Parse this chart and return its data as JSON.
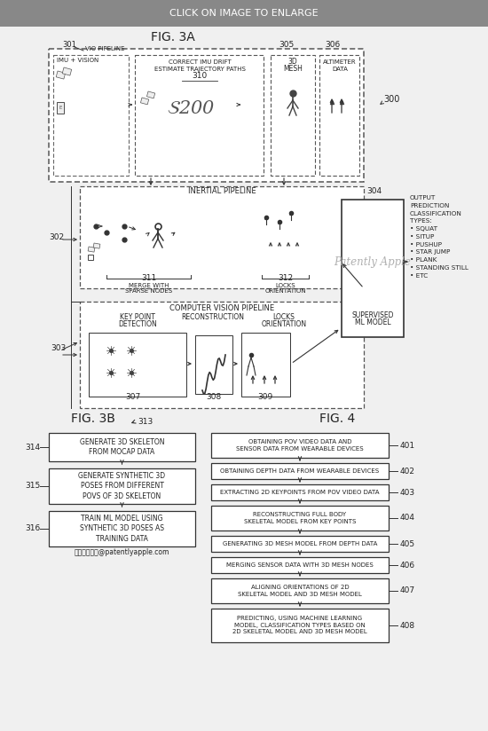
{
  "header_text": "CLICK ON IMAGE TO ENLARGE",
  "header_bg": "#888888",
  "header_text_color": "#ffffff",
  "bg_color": "#f0f0f0",
  "fig3a_title": "FIG. 3A",
  "fig3b_title": "FIG. 3B",
  "fig4_title": "FIG. 4",
  "text_color": "#222222",
  "fig4_steps": [
    "OBTAINING POV VIDEO DATA AND\nSENSOR DATA FROM WEARABLE DEVICES",
    "OBTAINING DEPTH DATA FROM WEARABLE DEVICES",
    "EXTRACTING 2D KEYPOINTS FROM POV VIDEO DATA",
    "RECONSTRUCTING FULL BODY\nSKELETAL MODEL FROM KEY POINTS",
    "GENERATING 3D MESH MODEL FROM DEPTH DATA",
    "MERGING SENSOR DATA WITH 3D MESH NODES",
    "ALIGNING ORIENTATIONS OF 2D\nSKELETAL MODEL AND 3D MESH MODEL",
    "PREDICTING, USING MACHINE LEARNING\nMODEL, CLASSIFICATION TYPES BASED ON\n2D SKELETAL MODEL AND 3D MESH MODEL"
  ],
  "fig4_labels": [
    "401",
    "402",
    "403",
    "404",
    "405",
    "406",
    "407",
    "408"
  ],
  "fig3b_steps": [
    "GENERATE 3D SKELETON\nFROM MOCAP DATA",
    "GENERATE SYNTHETIC 3D\nPOSES FROM DIFFERENT\nPOVS OF 3D SKELETON",
    "TRAIN ML MODEL USING\nSYNTHETIC 3D POSES AS\nTRAINING DATA"
  ],
  "fig3b_labels": [
    "314",
    "315",
    "316"
  ],
  "website": "阅读完整报告@patentlyapple.com",
  "classification_list": "OUTPUT\nPREDICTION\nCLASSIFICATION\nTYPES:\n• SQUAT\n• SITUP\n• PUSHUP\n• STAR JUMP\n• PLANK\n• STANDING STILL\n• ETC"
}
